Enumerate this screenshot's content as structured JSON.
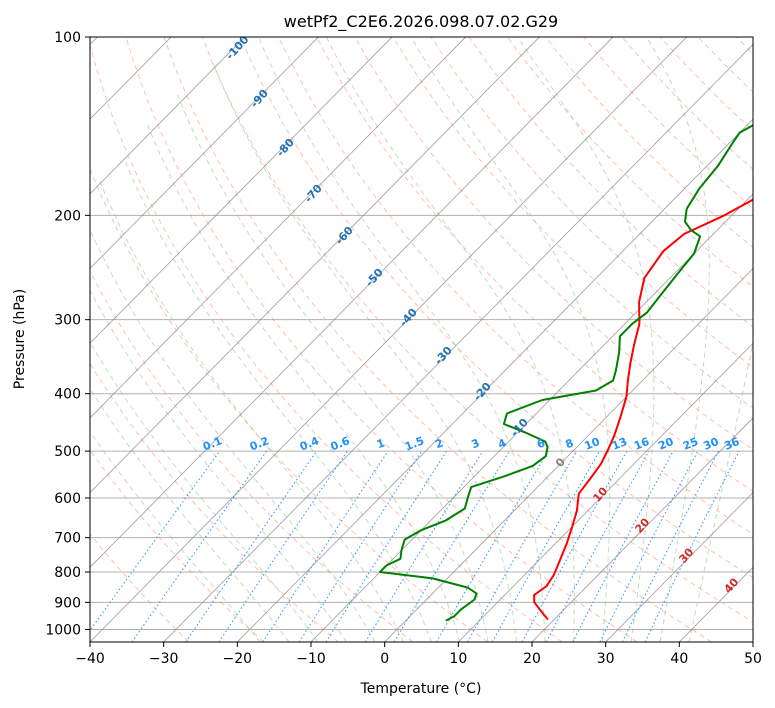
{
  "chart_data": {
    "type": "line",
    "subtype": "skew-T log-P",
    "title": "wetPf2_C2E6.2026.098.07.02.G29",
    "xlabel": "Temperature (°C)",
    "ylabel": "Pressure (hPa)",
    "xlim": [
      -40,
      50
    ],
    "ylim": [
      1050,
      100
    ],
    "y_scale": "log",
    "grid": true,
    "x_ticks": [
      -40,
      -30,
      -20,
      -10,
      0,
      10,
      20,
      30,
      40,
      50
    ],
    "y_ticks": [
      100,
      200,
      300,
      400,
      500,
      600,
      700,
      800,
      900,
      1000
    ],
    "colors": {
      "temperature": "#ff0000",
      "dewpoint": "#008000",
      "isotherm": "#888888",
      "dry_adiabat": "#ff8c69",
      "moist_adiabat": "#7fbf7f",
      "mixing_ratio": "#1e90ff",
      "wetbulb_label": "#2171b5",
      "zero_label": "#808080",
      "warm_label": "#d62728"
    },
    "series": [
      {
        "name": "Temperature",
        "points": [
          [
            19,
            960
          ],
          [
            18,
            945
          ],
          [
            15,
            900
          ],
          [
            14,
            875
          ],
          [
            14.5,
            845
          ],
          [
            14,
            810
          ],
          [
            13,
            770
          ],
          [
            11.5,
            715
          ],
          [
            10,
            670
          ],
          [
            8.5,
            630
          ],
          [
            6.5,
            590
          ],
          [
            6,
            555
          ],
          [
            5.5,
            525
          ],
          [
            4.5,
            495
          ],
          [
            3.5,
            470
          ],
          [
            2,
            440
          ],
          [
            0,
            405
          ],
          [
            -2,
            380
          ],
          [
            -4,
            355
          ],
          [
            -6,
            330
          ],
          [
            -8,
            305
          ],
          [
            -11,
            280
          ],
          [
            -13.5,
            255
          ],
          [
            -14.5,
            230
          ],
          [
            -14,
            215
          ],
          [
            -13,
            210
          ],
          [
            -12,
            205
          ],
          [
            -11,
            200
          ],
          [
            -9.5,
            190
          ],
          [
            -8,
            180
          ],
          [
            -6.5,
            172
          ],
          [
            -5.5,
            165
          ],
          [
            -4,
            155
          ],
          [
            -3,
            148
          ],
          [
            -2,
            140
          ],
          [
            -1.5,
            133
          ],
          [
            -0.5,
            125
          ],
          [
            0.5,
            118
          ],
          [
            2,
            112
          ],
          [
            4,
            106
          ],
          [
            5.5,
            100
          ]
        ]
      },
      {
        "name": "Dewpoint",
        "points": [
          [
            5.5,
            965
          ],
          [
            6,
            950
          ],
          [
            6,
            925
          ],
          [
            6.5,
            890
          ],
          [
            6,
            870
          ],
          [
            4,
            850
          ],
          [
            -2,
            820
          ],
          [
            -10,
            800
          ],
          [
            -10,
            780
          ],
          [
            -9,
            760
          ],
          [
            -10,
            735
          ],
          [
            -11,
            705
          ],
          [
            -10,
            680
          ],
          [
            -8,
            655
          ],
          [
            -7,
            625
          ],
          [
            -8,
            600
          ],
          [
            -9,
            575
          ],
          [
            -6,
            552
          ],
          [
            -3.5,
            530
          ],
          [
            -3,
            510
          ],
          [
            -4,
            492
          ],
          [
            -5,
            482
          ],
          [
            -9,
            465
          ],
          [
            -13,
            450
          ],
          [
            -14,
            432
          ],
          [
            -11,
            410
          ],
          [
            -5,
            395
          ],
          [
            -4,
            380
          ],
          [
            -5,
            365
          ],
          [
            -7,
            340
          ],
          [
            -9,
            320
          ],
          [
            -9,
            305
          ],
          [
            -8.5,
            292
          ],
          [
            -9,
            272
          ],
          [
            -9.5,
            252
          ],
          [
            -10,
            232
          ],
          [
            -11.5,
            217
          ],
          [
            -13.5,
            212
          ],
          [
            -15.5,
            205
          ],
          [
            -17,
            195
          ],
          [
            -18,
            180
          ],
          [
            -18.5,
            165
          ],
          [
            -19.5,
            152
          ],
          [
            -20,
            145
          ],
          [
            -19,
            140
          ],
          [
            -15,
            135
          ],
          [
            -12,
            130
          ],
          [
            -10,
            122
          ],
          [
            -11,
            115
          ],
          [
            -11,
            108
          ],
          [
            -9,
            100
          ]
        ]
      }
    ],
    "isotherm_labels": [
      "0",
      "10",
      "20",
      "30",
      "40"
    ],
    "wetbulb_labels": [
      "-100",
      "-90",
      "-80",
      "-70",
      "-60",
      "-50",
      "-40",
      "-30",
      "-20",
      "-10"
    ],
    "mixing_ratio_labels": [
      "0.1",
      "0.2",
      "0.4",
      "0.6",
      "1",
      "1.5",
      "2",
      "3",
      "4",
      "6",
      "8",
      "10",
      "13",
      "16",
      "20",
      "25",
      "30",
      "36"
    ]
  }
}
